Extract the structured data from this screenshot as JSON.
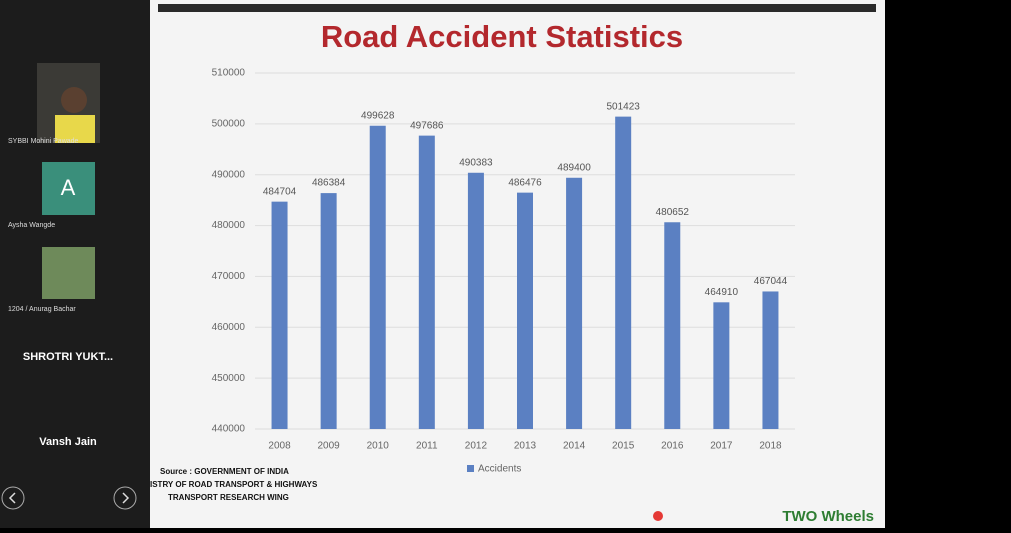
{
  "participants": [
    {
      "name": "SYBBI Mohini Pawade"
    },
    {
      "name": "Aysha Wangde",
      "initial": "A"
    },
    {
      "name": "1204 / Anurag Bachar"
    },
    {
      "name": "SHROTRI YUKT..."
    },
    {
      "name": "Vansh Jain"
    }
  ],
  "chart_data": {
    "type": "bar",
    "title": "Road Accident Statistics",
    "categories": [
      "2008",
      "2009",
      "2010",
      "2011",
      "2012",
      "2013",
      "2014",
      "2015",
      "2016",
      "2017",
      "2018"
    ],
    "series": [
      {
        "name": "Accidents",
        "color": "#5b80c2",
        "values": [
          484704,
          486384,
          499628,
          497686,
          490383,
          486476,
          489400,
          501423,
          480652,
          464910,
          467044
        ]
      }
    ],
    "ylim": [
      440000,
      510000
    ],
    "yticks": [
      440000,
      450000,
      460000,
      470000,
      480000,
      490000,
      500000,
      510000
    ],
    "grid": true,
    "data_labels": true,
    "legend": "bottom"
  },
  "source": [
    "Source : GOVERNMENT OF INDIA",
    "ISTRY OF ROAD TRANSPORT & HIGHWAYS",
    "TRANSPORT RESEARCH WING"
  ],
  "footer": "TWO Wheels"
}
